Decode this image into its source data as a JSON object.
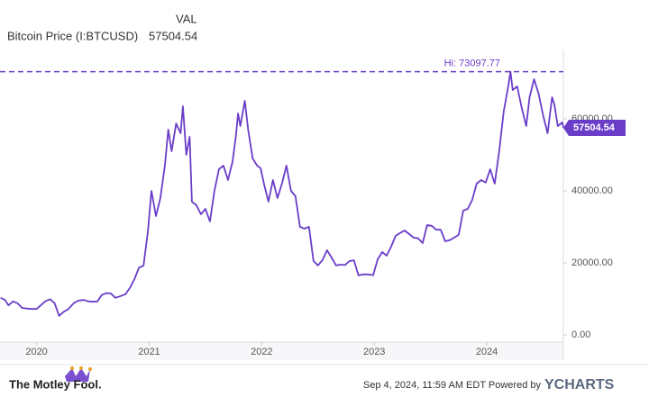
{
  "chart_data": {
    "type": "line",
    "header_label": "VAL",
    "x": [
      2019.68,
      2019.72,
      2019.75,
      2019.79,
      2019.83,
      2019.87,
      2019.92,
      2019.96,
      2020.0,
      2020.04,
      2020.08,
      2020.12,
      2020.16,
      2020.2,
      2020.24,
      2020.28,
      2020.33,
      2020.37,
      2020.42,
      2020.46,
      2020.5,
      2020.54,
      2020.58,
      2020.62,
      2020.66,
      2020.7,
      2020.74,
      2020.79,
      2020.83,
      2020.87,
      2020.91,
      2020.95,
      2020.99,
      2021.02,
      2021.06,
      2021.1,
      2021.14,
      2021.17,
      2021.2,
      2021.24,
      2021.28,
      2021.3,
      2021.33,
      2021.36,
      2021.38,
      2021.42,
      2021.46,
      2021.5,
      2021.54,
      2021.58,
      2021.62,
      2021.66,
      2021.7,
      2021.74,
      2021.77,
      2021.79,
      2021.81,
      2021.85,
      2021.88,
      2021.92,
      2021.96,
      2021.99,
      2022.02,
      2022.06,
      2022.1,
      2022.14,
      2022.18,
      2022.22,
      2022.26,
      2022.3,
      2022.34,
      2022.38,
      2022.42,
      2022.46,
      2022.5,
      2022.54,
      2022.58,
      2022.62,
      2022.66,
      2022.7,
      2022.74,
      2022.78,
      2022.82,
      2022.86,
      2022.9,
      2022.94,
      2022.99,
      2023.03,
      2023.07,
      2023.11,
      2023.15,
      2023.19,
      2023.23,
      2023.27,
      2023.31,
      2023.35,
      2023.39,
      2023.43,
      2023.47,
      2023.51,
      2023.55,
      2023.59,
      2023.63,
      2023.67,
      2023.71,
      2023.75,
      2023.79,
      2023.83,
      2023.87,
      2023.91,
      2023.95,
      2023.99,
      2024.03,
      2024.07,
      2024.11,
      2024.15,
      2024.19,
      2024.21,
      2024.23,
      2024.27,
      2024.31,
      2024.35,
      2024.38,
      2024.42,
      2024.46,
      2024.5,
      2024.54,
      2024.58,
      2024.6,
      2024.63,
      2024.67,
      2024.68
    ],
    "series": [
      {
        "name": "Bitcoin Price (I:BTCUSD)",
        "color": "#6a3dc9",
        "values": [
          10300,
          9700,
          8200,
          9300,
          8800,
          7500,
          7300,
          7200,
          7200,
          8300,
          9400,
          9900,
          8800,
          5300,
          6400,
          7100,
          8800,
          9500,
          9700,
          9300,
          9200,
          9300,
          11100,
          11600,
          11500,
          10300,
          10700,
          11300,
          13100,
          15500,
          18700,
          19200,
          29000,
          40000,
          33000,
          38000,
          47000,
          57000,
          51000,
          58700,
          56000,
          63500,
          50000,
          55000,
          37000,
          36000,
          33500,
          35000,
          31500,
          40000,
          46000,
          47000,
          43000,
          48000,
          55000,
          61500,
          58000,
          65000,
          57000,
          49000,
          47000,
          46300,
          42000,
          37000,
          43000,
          38000,
          42000,
          47000,
          40000,
          38500,
          30000,
          29500,
          30000,
          20500,
          19300,
          20800,
          23500,
          21500,
          19300,
          19500,
          19400,
          20500,
          20700,
          16500,
          16800,
          16800,
          16600,
          21000,
          23000,
          22000,
          24500,
          27500,
          28300,
          29000,
          28000,
          27000,
          26800,
          25500,
          30500,
          30300,
          29200,
          29200,
          26000,
          26300,
          27000,
          27800,
          34500,
          35000,
          37500,
          42000,
          43000,
          42300,
          46000,
          42000,
          51000,
          62000,
          69000,
          73097.77,
          68000,
          69000,
          63000,
          58000,
          66000,
          71000,
          67000,
          61000,
          56000,
          66000,
          64000,
          58000,
          59000,
          57504.54
        ]
      }
    ],
    "xlim": [
      2019.675,
      2024.68
    ],
    "xticks": [
      2020,
      2021,
      2022,
      2023,
      2024
    ],
    "ylim": [
      -2000,
      79250
    ],
    "yticks": [
      {
        "value": 0,
        "label": "0.00"
      },
      {
        "value": 20000,
        "label": "20000.00"
      },
      {
        "value": 40000,
        "label": "40000.00"
      },
      {
        "value": 60000,
        "label": "60000.00"
      }
    ],
    "hi": {
      "value": 73097.77,
      "label": "Hi: 73097.77"
    },
    "grid": false
  },
  "footer": {
    "logo": "The Motley Fool.",
    "timestamp": "Sep 4, 2024, 11:59 AM EDT Powered by",
    "provider": "YCHARTS"
  }
}
